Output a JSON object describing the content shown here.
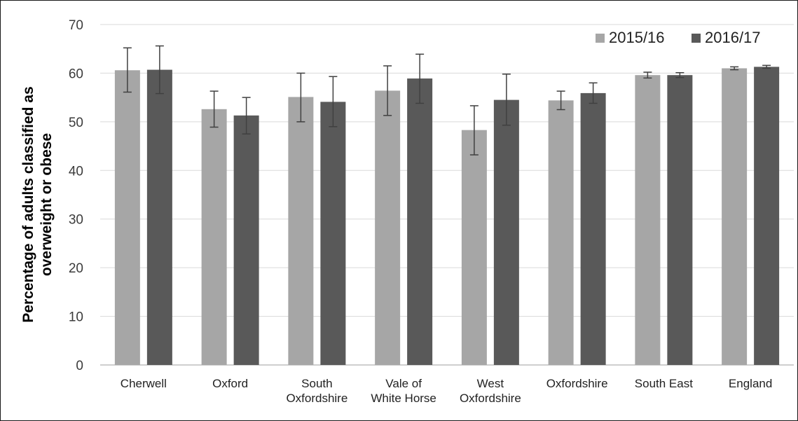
{
  "chart_data": {
    "type": "bar",
    "title": "",
    "xlabel": "",
    "ylabel": "Percentage of adults classified as overweight or obese",
    "ylabel_lines": [
      "Percentage of adults classified as",
      "overweight or obese"
    ],
    "ylim": [
      0,
      70
    ],
    "yticks": [
      0,
      10,
      20,
      30,
      40,
      50,
      60,
      70
    ],
    "grid": true,
    "legend_position": "top-right",
    "categories": [
      [
        "Cherwell"
      ],
      [
        "Oxford"
      ],
      [
        "South",
        "Oxfordshire"
      ],
      [
        "Vale of",
        "White Horse"
      ],
      [
        "West",
        "Oxfordshire"
      ],
      [
        "Oxfordshire"
      ],
      [
        "South East"
      ],
      [
        "England"
      ]
    ],
    "series": [
      {
        "name": "2015/16",
        "color": "#a6a6a6",
        "values": [
          60.6,
          52.6,
          55.1,
          56.4,
          48.3,
          54.4,
          59.6,
          61.0
        ],
        "error_low": [
          56.1,
          48.9,
          50.0,
          51.3,
          43.2,
          52.5,
          59.0,
          60.7
        ],
        "error_high": [
          65.2,
          56.3,
          60.0,
          61.5,
          53.3,
          56.3,
          60.2,
          61.3
        ]
      },
      {
        "name": "2016/17",
        "color": "#595959",
        "values": [
          60.7,
          51.3,
          54.1,
          58.9,
          54.5,
          55.9,
          59.6,
          61.3
        ],
        "error_low": [
          55.8,
          47.5,
          49.0,
          53.8,
          49.3,
          53.8,
          59.1,
          61.0
        ],
        "error_high": [
          65.6,
          55.0,
          59.3,
          63.9,
          59.8,
          58.0,
          60.1,
          61.6
        ]
      }
    ]
  }
}
